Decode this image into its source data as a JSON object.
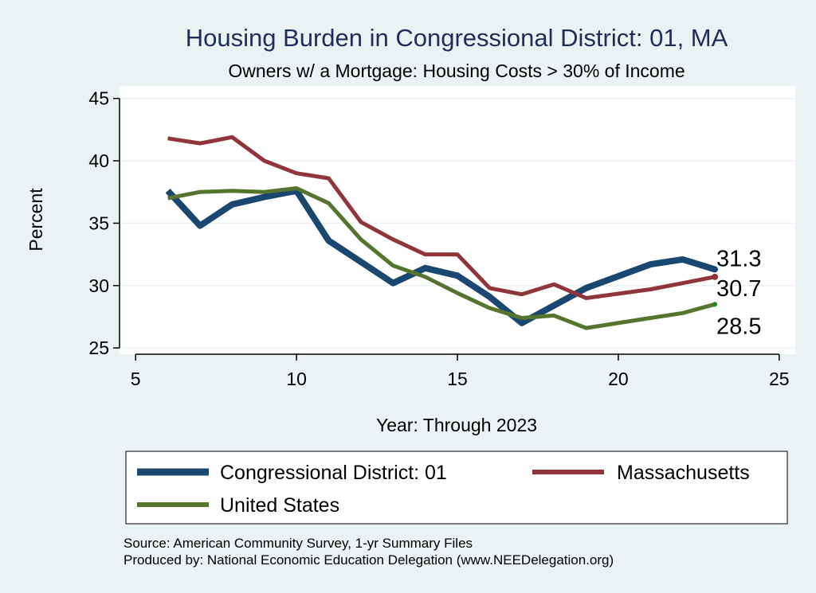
{
  "chart_data": {
    "type": "line",
    "title": "Housing Burden in Congressional District:  01, MA",
    "subtitle": "Owners w/ a Mortgage: Housing Costs > 30% of Income",
    "xlabel": "Year: Through 2023",
    "ylabel": "Percent",
    "xlim": [
      4.5,
      25.5
    ],
    "ylim": [
      24.5,
      46
    ],
    "xticks": [
      5,
      10,
      15,
      20,
      25
    ],
    "yticks": [
      25,
      30,
      35,
      40,
      45
    ],
    "grid": true,
    "legend_position": "bottom",
    "series": [
      {
        "name": "Congressional District:  01",
        "color": "#1a476f",
        "x": [
          6,
          7,
          8,
          9,
          10,
          11,
          12,
          13,
          14,
          15,
          16,
          17,
          18,
          19,
          21,
          22,
          23
        ],
        "y": [
          37.6,
          34.8,
          36.5,
          37.1,
          37.6,
          33.6,
          31.9,
          30.2,
          31.4,
          30.8,
          29.1,
          27.0,
          28.4,
          29.8,
          31.7,
          32.1,
          31.3
        ],
        "end_label": "31.3"
      },
      {
        "name": "Massachusetts",
        "color": "#90353b",
        "x": [
          6,
          7,
          8,
          9,
          10,
          11,
          12,
          13,
          14,
          15,
          16,
          17,
          18,
          19,
          21,
          22,
          23
        ],
        "y": [
          41.8,
          41.4,
          41.9,
          40.0,
          39.0,
          38.6,
          35.1,
          33.7,
          32.5,
          32.5,
          29.8,
          29.3,
          30.1,
          29.0,
          29.7,
          30.2,
          30.7
        ],
        "end_label": "30.7"
      },
      {
        "name": "United States",
        "color": "#55752f",
        "x": [
          6,
          7,
          8,
          9,
          10,
          11,
          12,
          13,
          14,
          15,
          16,
          17,
          18,
          19,
          21,
          22,
          23
        ],
        "y": [
          37.0,
          37.5,
          37.6,
          37.5,
          37.8,
          36.6,
          33.7,
          31.6,
          30.7,
          29.4,
          28.2,
          27.4,
          27.6,
          26.6,
          27.4,
          27.8,
          28.5
        ],
        "end_label": "28.5"
      }
    ],
    "notes": [
      "Source: American Community Survey, 1-yr Summary Files",
      "Produced by: National Economic Education Delegation (www.NEEDelegation.org)"
    ]
  }
}
